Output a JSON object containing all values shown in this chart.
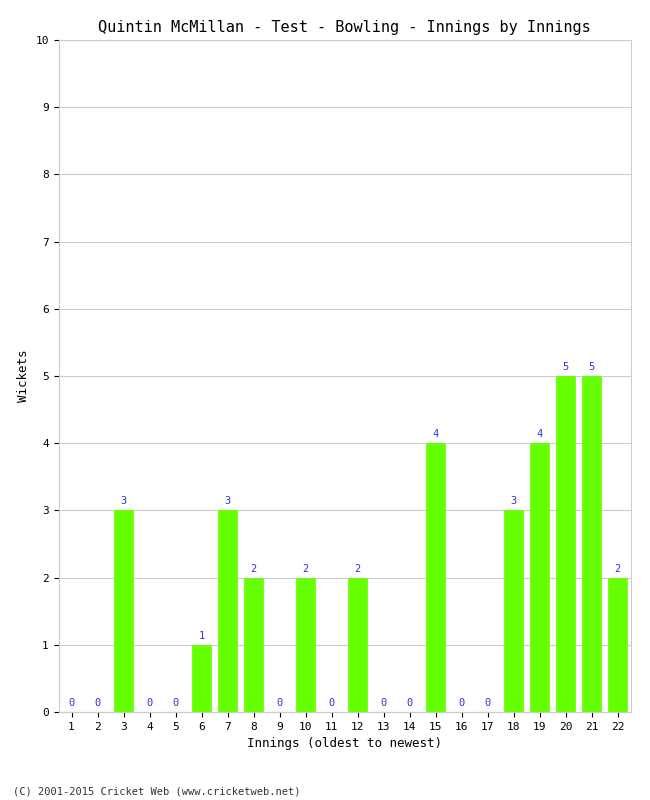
{
  "title": "Quintin McMillan - Test - Bowling - Innings by Innings",
  "xlabel": "Innings (oldest to newest)",
  "ylabel": "Wickets",
  "innings": [
    1,
    2,
    3,
    4,
    5,
    6,
    7,
    8,
    9,
    10,
    11,
    12,
    13,
    14,
    15,
    16,
    17,
    18,
    19,
    20,
    21,
    22
  ],
  "wickets": [
    0,
    0,
    3,
    0,
    0,
    1,
    3,
    2,
    0,
    2,
    0,
    2,
    0,
    0,
    4,
    0,
    0,
    3,
    4,
    5,
    5,
    2
  ],
  "bar_color": "#66ff00",
  "bar_edge_color": "#66ff00",
  "label_color": "#3333cc",
  "ylim": [
    0,
    10
  ],
  "yticks": [
    0,
    1,
    2,
    3,
    4,
    5,
    6,
    7,
    8,
    9,
    10
  ],
  "background_color": "#ffffff",
  "grid_color": "#cccccc",
  "title_fontsize": 11,
  "axis_label_fontsize": 9,
  "tick_fontsize": 8,
  "value_label_fontsize": 7.5,
  "footer": "(C) 2001-2015 Cricket Web (www.cricketweb.net)"
}
